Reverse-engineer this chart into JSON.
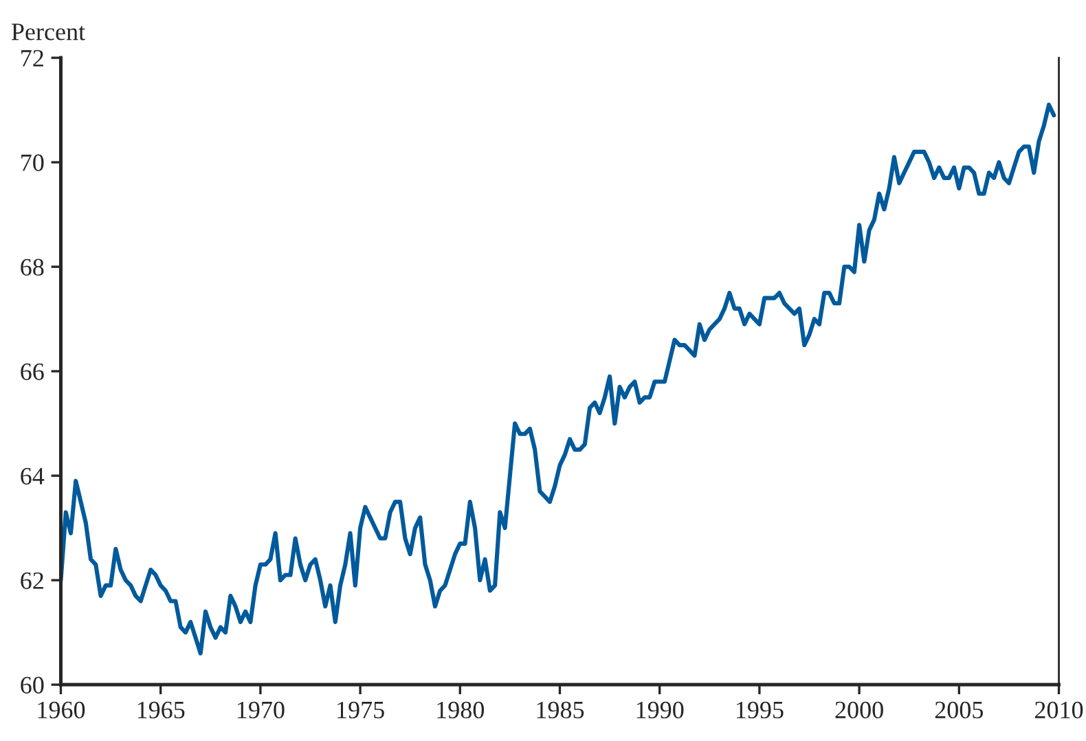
{
  "chart_data": {
    "type": "line",
    "ylabel": "Percent",
    "x": [
      1960.0,
      1960.25,
      1960.5,
      1960.75,
      1961.0,
      1961.25,
      1961.5,
      1961.75,
      1962.0,
      1962.25,
      1962.5,
      1962.75,
      1963.0,
      1963.25,
      1963.5,
      1963.75,
      1964.0,
      1964.25,
      1964.5,
      1964.75,
      1965.0,
      1965.25,
      1965.5,
      1965.75,
      1966.0,
      1966.25,
      1966.5,
      1966.75,
      1967.0,
      1967.25,
      1967.5,
      1967.75,
      1968.0,
      1968.25,
      1968.5,
      1968.75,
      1969.0,
      1969.25,
      1969.5,
      1969.75,
      1970.0,
      1970.25,
      1970.5,
      1970.75,
      1971.0,
      1971.25,
      1971.5,
      1971.75,
      1972.0,
      1972.25,
      1972.5,
      1972.75,
      1973.0,
      1973.25,
      1973.5,
      1973.75,
      1974.0,
      1974.25,
      1974.5,
      1974.75,
      1975.0,
      1975.25,
      1975.5,
      1975.75,
      1976.0,
      1976.25,
      1976.5,
      1976.75,
      1977.0,
      1977.25,
      1977.5,
      1977.75,
      1978.0,
      1978.25,
      1978.5,
      1978.75,
      1979.0,
      1979.25,
      1979.5,
      1979.75,
      1980.0,
      1980.25,
      1980.5,
      1980.75,
      1981.0,
      1981.25,
      1981.5,
      1981.75,
      1982.0,
      1982.25,
      1982.5,
      1982.75,
      1983.0,
      1983.25,
      1983.5,
      1983.75,
      1984.0,
      1984.25,
      1984.5,
      1984.75,
      1985.0,
      1985.25,
      1985.5,
      1985.75,
      1986.0,
      1986.25,
      1986.5,
      1986.75,
      1987.0,
      1987.25,
      1987.5,
      1987.75,
      1988.0,
      1988.25,
      1988.5,
      1988.75,
      1989.0,
      1989.25,
      1989.5,
      1989.75,
      1990.0,
      1990.25,
      1990.5,
      1990.75,
      1991.0,
      1991.25,
      1991.5,
      1991.75,
      1992.0,
      1992.25,
      1992.5,
      1992.75,
      1993.0,
      1993.25,
      1993.5,
      1993.75,
      1994.0,
      1994.25,
      1994.5,
      1994.75,
      1995.0,
      1995.25,
      1995.5,
      1995.75,
      1996.0,
      1996.25,
      1996.5,
      1996.75,
      1997.0,
      1997.25,
      1997.5,
      1997.75,
      1998.0,
      1998.25,
      1998.5,
      1998.75,
      1999.0,
      1999.25,
      1999.5,
      1999.75,
      2000.0,
      2000.25,
      2000.5,
      2000.75,
      2001.0,
      2001.25,
      2001.5,
      2001.75,
      2002.0,
      2002.25,
      2002.5,
      2002.75,
      2003.0,
      2003.25,
      2003.5,
      2003.75,
      2004.0,
      2004.25,
      2004.5,
      2004.75,
      2005.0,
      2005.25,
      2005.5,
      2005.75,
      2006.0,
      2006.25,
      2006.5,
      2006.75,
      2007.0,
      2007.25,
      2007.5,
      2007.75,
      2008.0,
      2008.25,
      2008.5,
      2008.75,
      2009.0,
      2009.25,
      2009.5,
      2009.75
    ],
    "series": [
      {
        "color": "#005a9c",
        "values": [
          62.0,
          63.3,
          62.9,
          63.9,
          63.5,
          63.1,
          62.4,
          62.3,
          61.7,
          61.9,
          61.9,
          62.6,
          62.2,
          62.0,
          61.9,
          61.7,
          61.6,
          61.9,
          62.2,
          62.1,
          61.9,
          61.8,
          61.6,
          61.6,
          61.1,
          61.0,
          61.2,
          60.9,
          60.6,
          61.4,
          61.1,
          60.9,
          61.1,
          61.0,
          61.7,
          61.5,
          61.2,
          61.4,
          61.2,
          61.9,
          62.3,
          62.3,
          62.4,
          62.9,
          62.0,
          62.1,
          62.1,
          62.8,
          62.3,
          62.0,
          62.3,
          62.4,
          62.0,
          61.5,
          61.9,
          61.2,
          61.9,
          62.3,
          62.9,
          61.9,
          63.0,
          63.4,
          63.2,
          63.0,
          62.8,
          62.8,
          63.3,
          63.5,
          63.5,
          62.8,
          62.5,
          63.0,
          63.2,
          62.3,
          62.0,
          61.5,
          61.8,
          61.9,
          62.2,
          62.5,
          62.7,
          62.7,
          63.5,
          63.0,
          62.0,
          62.4,
          61.8,
          61.9,
          63.3,
          63.0,
          64.0,
          65.0,
          64.8,
          64.8,
          64.9,
          64.5,
          63.7,
          63.6,
          63.5,
          63.8,
          64.2,
          64.4,
          64.7,
          64.5,
          64.5,
          64.6,
          65.3,
          65.4,
          65.2,
          65.5,
          65.9,
          65.0,
          65.7,
          65.5,
          65.7,
          65.8,
          65.4,
          65.5,
          65.5,
          65.8,
          65.8,
          65.8,
          66.2,
          66.6,
          66.5,
          66.5,
          66.4,
          66.3,
          66.9,
          66.6,
          66.8,
          66.9,
          67.0,
          67.2,
          67.5,
          67.2,
          67.2,
          66.9,
          67.1,
          67.0,
          66.9,
          67.4,
          67.4,
          67.4,
          67.5,
          67.3,
          67.2,
          67.1,
          67.2,
          66.5,
          66.7,
          67.0,
          66.9,
          67.5,
          67.5,
          67.3,
          67.3,
          68.0,
          68.0,
          67.9,
          68.8,
          68.1,
          68.7,
          68.9,
          69.4,
          69.1,
          69.5,
          70.1,
          69.6,
          69.8,
          70.0,
          70.2,
          70.2,
          70.2,
          70.0,
          69.7,
          69.9,
          69.7,
          69.7,
          69.9,
          69.5,
          69.9,
          69.9,
          69.8,
          69.4,
          69.4,
          69.8,
          69.7,
          70.0,
          69.7,
          69.6,
          69.9,
          70.2,
          70.3,
          70.3,
          69.8,
          70.4,
          70.7,
          71.1,
          70.9
        ]
      }
    ],
    "xlim": [
      1960,
      2010
    ],
    "xticks": [
      1960,
      1965,
      1970,
      1975,
      1980,
      1985,
      1990,
      1995,
      2000,
      2005,
      2010
    ],
    "ylim": [
      60,
      72
    ],
    "yticks": [
      60,
      62,
      64,
      66,
      68,
      70,
      72
    ]
  }
}
